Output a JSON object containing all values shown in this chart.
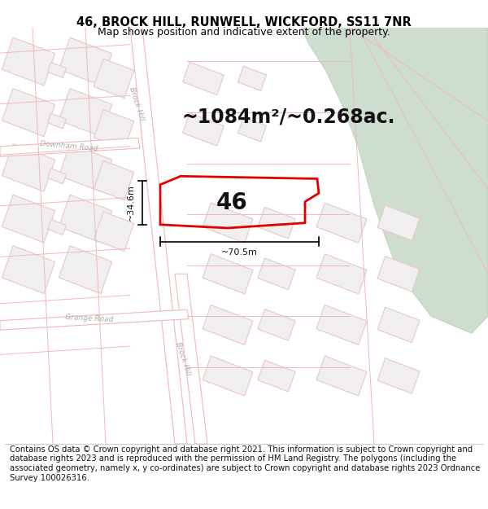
{
  "title": "46, BROCK HILL, RUNWELL, WICKFORD, SS11 7NR",
  "subtitle": "Map shows position and indicative extent of the property.",
  "area_text": "~1084m²/~0.268ac.",
  "label_46": "46",
  "dim_height": "~34.6m",
  "dim_width": "~70.5m",
  "footer": "Contains OS data © Crown copyright and database right 2021. This information is subject to Crown copyright and database rights 2023 and is reproduced with the permission of HM Land Registry. The polygons (including the associated geometry, namely x, y co-ordinates) are subject to Crown copyright and database rights 2023 Ordnance Survey 100026316.",
  "bg_color": "#ffffff",
  "map_bg": "#ffffff",
  "road_line_color": "#f0b8b8",
  "road_fill_color": "#ffffff",
  "green_color": "#cddece",
  "green_edge": "#b8ccb8",
  "property_color": "#e00000",
  "property_linewidth": 2.0,
  "block_fill": "#f0eeee",
  "block_edge": "#e8c8c8",
  "block_lw": 0.8,
  "title_fontsize": 10.5,
  "subtitle_fontsize": 9,
  "area_fontsize": 17,
  "label_fontsize": 20,
  "dim_fontsize": 8,
  "footer_fontsize": 7.2,
  "street_label_color": "#aaaaaa",
  "street_label_size": 6.5
}
